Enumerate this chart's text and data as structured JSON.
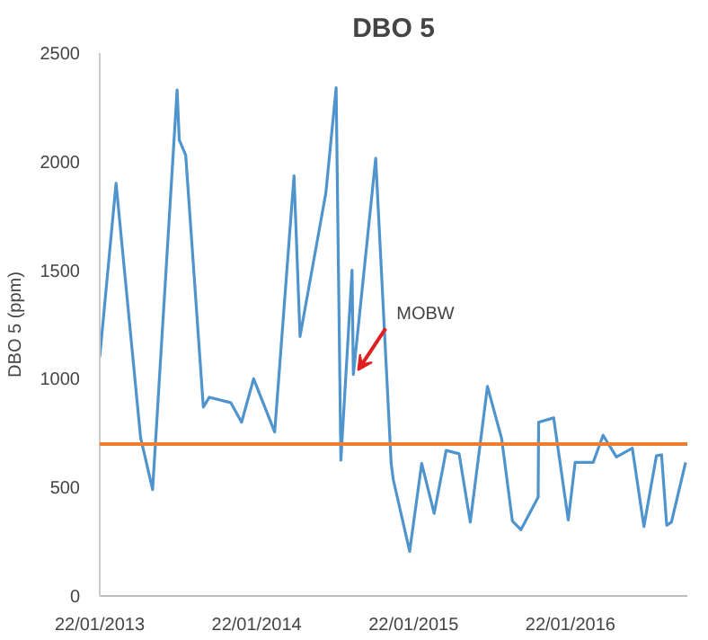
{
  "chart_data": {
    "type": "line",
    "title": "DBO 5",
    "ylabel": "DBO 5 (ppm)",
    "x": [
      "2013-01-22",
      "2013-03-01",
      "2013-04-27",
      "2013-05-25",
      "2013-07-21",
      "2013-07-26",
      "2013-08-10",
      "2013-09-20",
      "2013-10-04",
      "2013-11-23",
      "2013-12-18",
      "2014-01-15",
      "2014-03-05",
      "2014-04-19",
      "2014-05-03",
      "2014-07-02",
      "2014-07-26",
      "2014-08-06",
      "2014-09-01",
      "2014-09-04",
      "2014-10-26",
      "2014-12-01",
      "2014-12-06",
      "2015-01-13",
      "2015-02-10",
      "2015-03-11",
      "2015-04-08",
      "2015-05-08",
      "2015-06-03",
      "2015-07-13",
      "2015-08-15",
      "2015-09-09",
      "2015-09-29",
      "2015-11-08",
      "2015-11-09",
      "2015-12-14",
      "2016-01-17",
      "2016-02-02",
      "2016-03-15",
      "2016-04-07",
      "2016-05-08",
      "2016-06-14",
      "2016-07-11",
      "2016-08-09",
      "2016-08-21",
      "2016-09-02",
      "2016-09-13",
      "2016-10-16"
    ],
    "series": [
      {
        "color": "#4f94cd",
        "values": [
          1100,
          1900,
          730,
          490,
          2330,
          2100,
          2030,
          870,
          915,
          890,
          800,
          1000,
          755,
          1935,
          1195,
          1855,
          2340,
          625,
          1500,
          1020,
          2015,
          610,
          535,
          205,
          610,
          380,
          670,
          655,
          340,
          965,
          725,
          345,
          305,
          455,
          800,
          820,
          350,
          615,
          615,
          740,
          640,
          680,
          320,
          645,
          650,
          325,
          340,
          615
        ]
      }
    ],
    "xlim": [
      "2013-01-22",
      "2016-10-20"
    ],
    "xticks": [
      {
        "value": "2013-01-22",
        "label": "22/01/2013"
      },
      {
        "value": "2014-01-22",
        "label": "22/01/2014"
      },
      {
        "value": "2015-01-22",
        "label": "22/01/2015"
      },
      {
        "value": "2016-01-22",
        "label": "22/01/2016"
      }
    ],
    "ylim": [
      0,
      2500
    ],
    "yticks": [
      0,
      500,
      1000,
      1500,
      2000,
      2500
    ],
    "ref_lines": [
      {
        "axis": "y",
        "value": 700,
        "color": "#ed7d31"
      }
    ],
    "annotations": [
      {
        "text": "MOBW",
        "x": "2014-09-04",
        "y": 1019
      }
    ],
    "marker": "none",
    "line_style": "solid"
  }
}
